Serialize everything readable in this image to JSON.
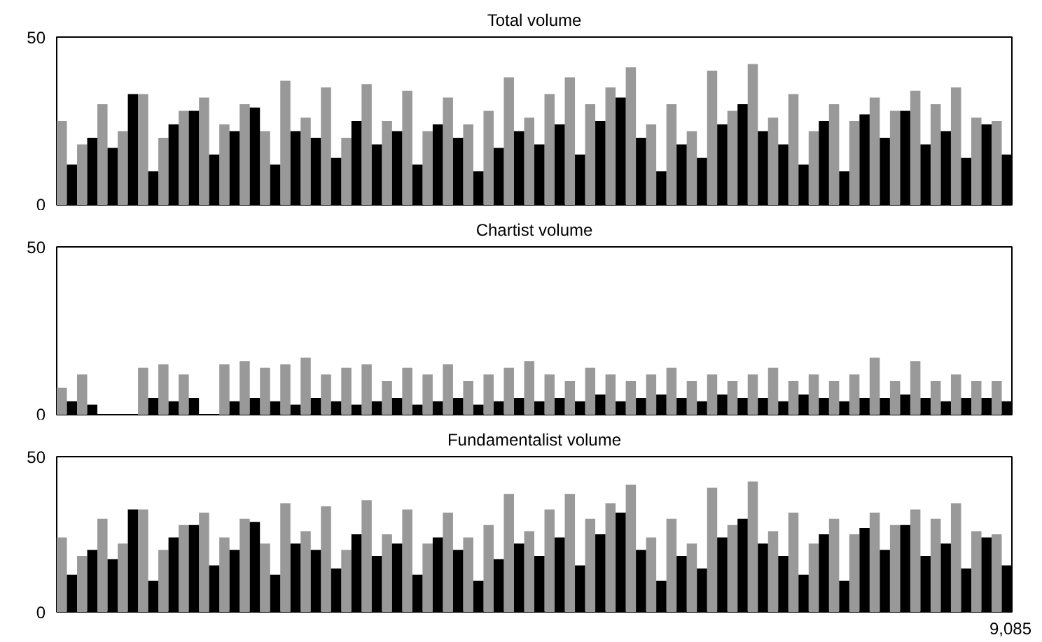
{
  "chart_data": [
    {
      "type": "bar",
      "title": "Total volume",
      "categories": [
        null,
        null,
        null,
        null,
        null,
        null,
        null,
        null,
        null,
        null,
        null,
        null,
        null,
        null,
        null,
        null,
        null,
        null,
        null,
        null,
        null,
        null,
        null,
        null,
        null,
        null,
        null,
        null,
        null,
        null,
        null,
        null,
        null,
        null,
        null,
        null,
        null,
        null,
        null,
        null,
        null,
        null,
        null,
        null,
        null,
        null,
        null
      ],
      "ylim": [
        0,
        50
      ],
      "yticks": [
        0,
        50
      ],
      "series": [
        {
          "color": "#999999",
          "values": [
            25,
            18,
            30,
            22,
            33,
            20,
            28,
            32,
            24,
            30,
            22,
            37,
            26,
            35,
            20,
            36,
            25,
            34,
            22,
            32,
            24,
            28,
            38,
            26,
            33,
            38,
            30,
            35,
            41,
            24,
            30,
            22,
            40,
            28,
            42,
            26,
            33,
            22,
            30,
            25,
            32,
            28,
            34,
            30,
            35,
            26,
            25
          ]
        },
        {
          "color": "#000000",
          "values": [
            12,
            20,
            17,
            33,
            10,
            24,
            28,
            15,
            22,
            29,
            12,
            22,
            20,
            14,
            25,
            18,
            22,
            12,
            24,
            20,
            10,
            17,
            22,
            18,
            24,
            15,
            25,
            32,
            20,
            10,
            18,
            14,
            24,
            30,
            22,
            18,
            12,
            25,
            10,
            27,
            20,
            28,
            18,
            22,
            14,
            24,
            15
          ]
        }
      ]
    },
    {
      "type": "bar",
      "title": "Chartist volume",
      "categories": [
        null,
        null,
        null,
        null,
        null,
        null,
        null,
        null,
        null,
        null,
        null,
        null,
        null,
        null,
        null,
        null,
        null,
        null,
        null,
        null,
        null,
        null,
        null,
        null,
        null,
        null,
        null,
        null,
        null,
        null,
        null,
        null,
        null,
        null,
        null,
        null,
        null,
        null,
        null,
        null,
        null,
        null,
        null,
        null,
        null,
        null,
        null
      ],
      "ylim": [
        0,
        50
      ],
      "yticks": [
        0,
        50
      ],
      "series": [
        {
          "color": "#999999",
          "values": [
            8,
            12,
            0,
            0,
            14,
            15,
            12,
            0,
            15,
            16,
            14,
            15,
            17,
            12,
            14,
            15,
            10,
            14,
            12,
            15,
            10,
            12,
            14,
            16,
            12,
            10,
            14,
            12,
            10,
            12,
            14,
            10,
            12,
            10,
            12,
            14,
            10,
            12,
            10,
            12,
            17,
            10,
            16,
            10,
            12,
            10,
            10
          ]
        },
        {
          "color": "#000000",
          "values": [
            4,
            3,
            0,
            0,
            5,
            4,
            5,
            0,
            4,
            5,
            4,
            3,
            5,
            4,
            3,
            4,
            5,
            3,
            4,
            5,
            3,
            4,
            5,
            4,
            5,
            4,
            6,
            4,
            5,
            6,
            5,
            4,
            6,
            5,
            5,
            4,
            6,
            5,
            4,
            5,
            5,
            6,
            5,
            4,
            5,
            5,
            4
          ]
        }
      ]
    },
    {
      "type": "bar",
      "title": "Fundamentalist volume",
      "categories": [
        null,
        null,
        null,
        null,
        null,
        null,
        null,
        null,
        null,
        null,
        null,
        null,
        null,
        null,
        null,
        null,
        null,
        null,
        null,
        null,
        null,
        null,
        null,
        null,
        null,
        null,
        null,
        null,
        null,
        null,
        null,
        null,
        null,
        null,
        null,
        null,
        null,
        null,
        null,
        null,
        null,
        null,
        null,
        null,
        null,
        null,
        null
      ],
      "ylim": [
        0,
        50
      ],
      "yticks": [
        0,
        50
      ],
      "annotations": [
        "9,085"
      ],
      "series": [
        {
          "color": "#999999",
          "values": [
            24,
            18,
            30,
            22,
            33,
            20,
            28,
            32,
            24,
            30,
            22,
            35,
            26,
            34,
            20,
            36,
            25,
            33,
            22,
            32,
            24,
            28,
            38,
            26,
            33,
            38,
            30,
            35,
            41,
            24,
            30,
            22,
            40,
            28,
            42,
            26,
            32,
            22,
            30,
            25,
            32,
            28,
            33,
            30,
            35,
            26,
            25
          ]
        },
        {
          "color": "#000000",
          "values": [
            12,
            20,
            17,
            33,
            10,
            24,
            28,
            15,
            20,
            29,
            12,
            22,
            20,
            14,
            25,
            18,
            22,
            12,
            24,
            20,
            10,
            17,
            22,
            18,
            24,
            15,
            25,
            32,
            20,
            10,
            18,
            14,
            24,
            30,
            22,
            18,
            12,
            25,
            10,
            27,
            20,
            28,
            18,
            22,
            14,
            24,
            15
          ]
        }
      ]
    }
  ]
}
